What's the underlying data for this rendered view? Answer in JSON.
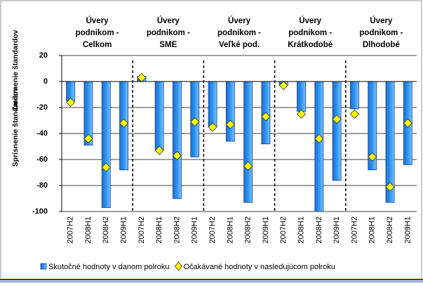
{
  "chart_data": {
    "type": "bar",
    "groups": [
      [
        "Úvery",
        "podnikom -",
        "Celkom"
      ],
      [
        "Úvery",
        "podnikom -",
        "SME"
      ],
      [
        "Úvery",
        "podnikom -",
        "Veľké pod."
      ],
      [
        "Úvery",
        "podnikom -",
        "Krátkodobé"
      ],
      [
        "Úvery",
        "podnikom -",
        "Dlhodobé"
      ]
    ],
    "categories": [
      "2007H2",
      "2008H1",
      "2008H2",
      "2009H1",
      "2007H2",
      "2008H1",
      "2008H2",
      "2009H1",
      "2007H2",
      "2008H1",
      "2008H2",
      "2009H1",
      "2007H2",
      "2008H1",
      "2008H2",
      "2009H1",
      "2007H2",
      "2008H1",
      "2008H2",
      "2009H1"
    ],
    "y_axis_labels": [
      "Zmiernenie štandardov",
      "Sprísnenie štandardov"
    ],
    "series": [
      {
        "name": "Skutočné hodnoty v danom polroku",
        "color": "#2f95f0",
        "marker": "bar",
        "values": [
          -15,
          -49,
          -97,
          -68,
          4,
          -53,
          -90,
          -58,
          -35,
          -46,
          -93,
          -48,
          -3,
          -23,
          -100,
          -76,
          -21,
          -68,
          -93,
          -64
        ]
      },
      {
        "name": "Očakávané hodnoty v nasledujúcom polroku",
        "color": "#ffff00",
        "marker": "diamond",
        "values": [
          -16,
          -44,
          -66,
          -32,
          3,
          -53,
          -57,
          -31,
          -35,
          -33,
          -65,
          -27,
          -3,
          -25,
          -44,
          -29,
          -25,
          -58,
          -81,
          -32
        ]
      }
    ],
    "ylim": [
      -100,
      20
    ],
    "yticks": [
      -100,
      -80,
      -60,
      -40,
      -20,
      0,
      20
    ],
    "grid": true
  }
}
